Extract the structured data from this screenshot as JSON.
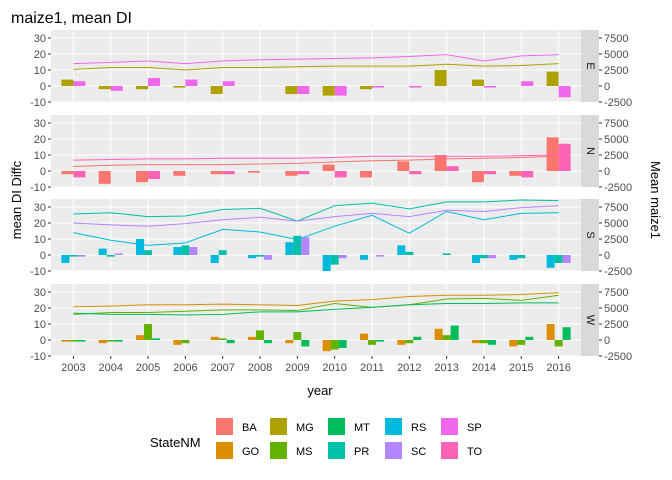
{
  "chart_data": {
    "type": "bar",
    "title": "maize1, mean DI",
    "xlabel": "year",
    "ylabel_left": "mean DI Diffc",
    "ylabel_right": "Mean maize1",
    "years": [
      2003,
      2004,
      2005,
      2006,
      2007,
      2008,
      2009,
      2010,
      2011,
      2012,
      2013,
      2014,
      2015,
      2016
    ],
    "year_tick_labels": [
      "2003",
      "2004",
      "2005",
      "2006",
      "2007",
      "2008",
      "2009",
      "2010",
      "2011",
      "2012",
      "2013",
      "2014",
      "2015",
      "2016"
    ],
    "ylim_left": [
      -10,
      35
    ],
    "yticks_left": [
      -10,
      0,
      10,
      20,
      30
    ],
    "ytick_labels_left": [
      "-10",
      "0",
      "10",
      "20",
      "30"
    ],
    "yticks_right": [
      -2500,
      0,
      2500,
      5000,
      7500
    ],
    "ytick_labels_right": [
      "-2500",
      "0",
      "2500",
      "5000",
      "7500"
    ],
    "legend": {
      "title": "StateNM",
      "placement": "bottom",
      "entries": [
        {
          "name": "BA",
          "color": "#F8766D"
        },
        {
          "name": "GO",
          "color": "#DB8E00"
        },
        {
          "name": "MG",
          "color": "#AEA200"
        },
        {
          "name": "MS",
          "color": "#64B200"
        },
        {
          "name": "MT",
          "color": "#00BD5C"
        },
        {
          "name": "PR",
          "color": "#00C1A7"
        },
        {
          "name": "RS",
          "color": "#00BADE"
        },
        {
          "name": "SC",
          "color": "#B385FF"
        },
        {
          "name": "SP",
          "color": "#EF67EB"
        },
        {
          "name": "TO",
          "color": "#FF63B6"
        }
      ]
    },
    "panels": [
      {
        "strip": "E",
        "bars": [
          {
            "state": "MG",
            "values": [
              4,
              -2,
              -2,
              -1,
              -5,
              0,
              -5,
              -6,
              -2,
              0,
              10,
              4,
              0,
              9
            ]
          },
          {
            "state": "SP",
            "values": [
              3,
              -3,
              5,
              4,
              3,
              0,
              -5,
              -6,
              -1,
              -1,
              0,
              -1,
              3,
              -7
            ]
          }
        ],
        "lines": [
          {
            "state": "MG",
            "values": [
              2600,
              2900,
              2900,
              2500,
              2900,
              2900,
              3000,
              3100,
              3100,
              3100,
              3400,
              3100,
              3200,
              3500
            ]
          },
          {
            "state": "SP",
            "values": [
              3500,
              3700,
              3900,
              3500,
              3900,
              4100,
              4200,
              4300,
              4400,
              4600,
              4900,
              3900,
              4700,
              4900
            ]
          }
        ]
      },
      {
        "strip": "N",
        "bars": [
          {
            "state": "BA",
            "values": [
              -2,
              -8,
              -7,
              -3,
              -2,
              -1,
              -3,
              4,
              -4,
              6,
              10,
              -7,
              -3,
              21
            ]
          },
          {
            "state": "TO",
            "values": [
              -4,
              0,
              -5,
              0,
              -2,
              0,
              -2,
              -4,
              0,
              -2,
              3,
              -2,
              -4,
              17
            ]
          }
        ],
        "lines": [
          {
            "state": "BA",
            "values": [
              700,
              900,
              1000,
              1000,
              1000,
              1100,
              1200,
              1400,
              1600,
              1700,
              1900,
              2000,
              2100,
              2300
            ]
          },
          {
            "state": "TO",
            "values": [
              1700,
              1800,
              1900,
              1900,
              2000,
              2000,
              2000,
              2100,
              2300,
              2300,
              2300,
              2300,
              2400,
              2500
            ]
          }
        ]
      },
      {
        "strip": "S",
        "bars": [
          {
            "state": "RS",
            "values": [
              -5,
              4,
              10,
              5,
              -5,
              -2,
              8,
              -10,
              -3,
              6,
              0,
              -5,
              -3,
              -8
            ]
          },
          {
            "state": "PR",
            "values": [
              -1,
              -1,
              3,
              6,
              3,
              -1,
              12,
              -6,
              0,
              2,
              1,
              -2,
              -2,
              -5
            ]
          },
          {
            "state": "SC",
            "values": [
              -1,
              1,
              0,
              5,
              0,
              -3,
              11,
              -2,
              -1,
              0,
              0,
              -2,
              0,
              -5
            ]
          }
        ],
        "lines": [
          {
            "state": "RS",
            "values": [
              3500,
              2300,
              1500,
              1900,
              4000,
              3600,
              2400,
              4500,
              6200,
              3400,
              6800,
              5500,
              6500,
              6600
            ]
          },
          {
            "state": "PR",
            "values": [
              6400,
              6600,
              6000,
              6100,
              7100,
              7300,
              5300,
              7700,
              8100,
              7200,
              8300,
              8300,
              8600,
              8500
            ]
          },
          {
            "state": "SC",
            "values": [
              5000,
              4700,
              4500,
              4900,
              5500,
              5900,
              5300,
              6000,
              6500,
              6000,
              7000,
              6800,
              7400,
              7700
            ]
          }
        ]
      },
      {
        "strip": "W",
        "bars": [
          {
            "state": "GO",
            "values": [
              -1,
              -2,
              3,
              -3,
              2,
              2,
              -2,
              -7,
              4,
              -3,
              7,
              -2,
              -4,
              10
            ]
          },
          {
            "state": "MS",
            "values": [
              -1,
              -1,
              10,
              -2,
              1,
              6,
              5,
              -6,
              -3,
              -2,
              3,
              -2,
              -3,
              -4
            ]
          },
          {
            "state": "MT",
            "values": [
              -1,
              -1,
              1,
              0,
              -2,
              -2,
              -4,
              -5,
              -1,
              2,
              9,
              -3,
              2,
              8
            ]
          }
        ],
        "lines": [
          {
            "state": "GO",
            "values": [
              5200,
              5300,
              5500,
              5500,
              5600,
              5500,
              5400,
              6100,
              6300,
              6800,
              7000,
              7000,
              7100,
              7400
            ]
          },
          {
            "state": "MS",
            "values": [
              4000,
              4300,
              4300,
              4500,
              4700,
              4700,
              4600,
              5700,
              5100,
              5500,
              6400,
              6500,
              6200,
              7000
            ]
          },
          {
            "state": "MT",
            "values": [
              4200,
              4000,
              4000,
              3900,
              4000,
              4400,
              4400,
              4800,
              5100,
              5500,
              5700,
              5700,
              5800,
              5800
            ]
          }
        ]
      }
    ]
  }
}
